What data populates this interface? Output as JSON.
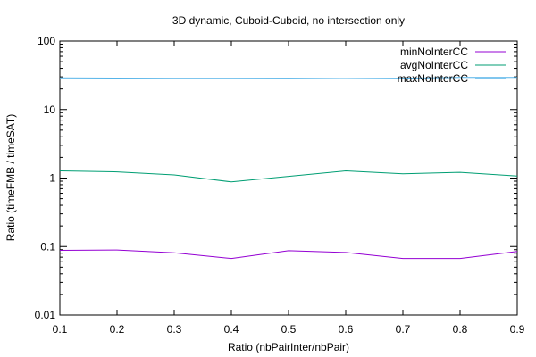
{
  "chart_data": {
    "type": "line",
    "title": "3D dynamic, Cuboid-Cuboid, no intersection only",
    "xlabel": "Ratio (nbPairInter/nbPair)",
    "ylabel": "Ratio (timeFMB / timeSAT)",
    "xlim": [
      0.1,
      0.9
    ],
    "ylim": [
      0.01,
      100
    ],
    "yscale": "log",
    "grid": false,
    "legend_position": "top-right",
    "x": [
      0.1,
      0.2,
      0.3,
      0.4,
      0.5,
      0.6,
      0.7,
      0.8,
      0.9
    ],
    "xticks": [
      "0.1",
      "0.2",
      "0.3",
      "0.4",
      "0.5",
      "0.6",
      "0.7",
      "0.8",
      "0.9"
    ],
    "yticks": [
      {
        "value": 0.01,
        "label": "0.01"
      },
      {
        "value": 0.1,
        "label": "0.1"
      },
      {
        "value": 1,
        "label": "1"
      },
      {
        "value": 10,
        "label": "10"
      },
      {
        "value": 100,
        "label": "100"
      }
    ],
    "series": [
      {
        "name": "minNoInterCC",
        "color": "#9400d3",
        "values": [
          0.088,
          0.089,
          0.081,
          0.067,
          0.087,
          0.082,
          0.067,
          0.067,
          0.085
        ]
      },
      {
        "name": "avgNoInterCC",
        "color": "#009e73",
        "values": [
          1.27,
          1.23,
          1.11,
          0.88,
          1.06,
          1.27,
          1.15,
          1.21,
          1.07
        ]
      },
      {
        "name": "maxNoInterCC",
        "color": "#56b4e9",
        "values": [
          29.0,
          28.8,
          28.6,
          28.6,
          28.7,
          28.4,
          28.7,
          29.4,
          29.4
        ]
      }
    ]
  }
}
